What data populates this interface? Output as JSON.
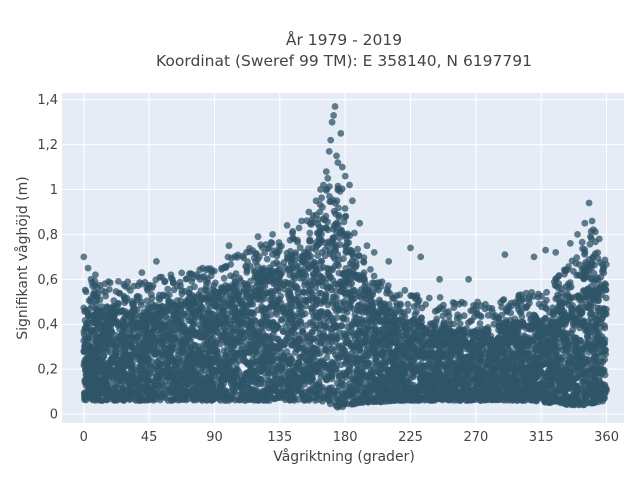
{
  "chart_data": {
    "type": "scatter",
    "title_line1": "År 1979 - 2019",
    "title_line2": "Koordinat (Sweref 99 TM): E 358140, N 6197791",
    "xlabel": "Vågriktning (grader)",
    "ylabel": "Signifikant våghöjd (m)",
    "xlim": [
      -15,
      372
    ],
    "ylim": [
      -0.04,
      1.43
    ],
    "xticks": [
      0,
      45,
      90,
      135,
      180,
      225,
      270,
      315,
      360
    ],
    "xtick_labels": [
      "0",
      "45",
      "90",
      "135",
      "180",
      "225",
      "270",
      "315",
      "360"
    ],
    "yticks": [
      0,
      0.2,
      0.4,
      0.6,
      0.8,
      1.0,
      1.2,
      1.4
    ],
    "ytick_labels": [
      "0",
      "0,2",
      "0,4",
      "0,6",
      "0,8",
      "1",
      "1,2",
      "1,4"
    ],
    "grid": true,
    "marker_color": "#2f5468",
    "background_color": "#e5ecf6",
    "envelope": {
      "x": [
        0,
        15,
        30,
        45,
        60,
        75,
        90,
        105,
        120,
        135,
        150,
        160,
        170,
        175,
        180,
        190,
        200,
        215,
        230,
        245,
        260,
        275,
        290,
        305,
        320,
        335,
        345,
        352,
        360
      ],
      "ymin": [
        0.06,
        0.06,
        0.06,
        0.06,
        0.06,
        0.06,
        0.06,
        0.06,
        0.06,
        0.06,
        0.06,
        0.05,
        0.04,
        0.03,
        0.03,
        0.05,
        0.05,
        0.06,
        0.06,
        0.06,
        0.06,
        0.06,
        0.06,
        0.06,
        0.05,
        0.04,
        0.04,
        0.05,
        0.06
      ],
      "ymax": [
        0.47,
        0.48,
        0.47,
        0.48,
        0.5,
        0.52,
        0.55,
        0.6,
        0.63,
        0.67,
        0.72,
        0.8,
        0.92,
        0.95,
        0.85,
        0.6,
        0.52,
        0.45,
        0.42,
        0.4,
        0.38,
        0.38,
        0.4,
        0.42,
        0.45,
        0.55,
        0.68,
        0.72,
        0.55
      ]
    },
    "outliers": [
      {
        "x": 0,
        "y": 0.7
      },
      {
        "x": 3,
        "y": 0.65
      },
      {
        "x": 5,
        "y": 0.6
      },
      {
        "x": 8,
        "y": 0.62
      },
      {
        "x": 40,
        "y": 0.63
      },
      {
        "x": 50,
        "y": 0.68
      },
      {
        "x": 60,
        "y": 0.62
      },
      {
        "x": 80,
        "y": 0.6
      },
      {
        "x": 95,
        "y": 0.65
      },
      {
        "x": 100,
        "y": 0.75
      },
      {
        "x": 112,
        "y": 0.72
      },
      {
        "x": 120,
        "y": 0.79
      },
      {
        "x": 130,
        "y": 0.8
      },
      {
        "x": 140,
        "y": 0.84
      },
      {
        "x": 150,
        "y": 0.86
      },
      {
        "x": 155,
        "y": 0.9
      },
      {
        "x": 160,
        "y": 0.95
      },
      {
        "x": 163,
        "y": 1.0
      },
      {
        "x": 165,
        "y": 1.02
      },
      {
        "x": 167,
        "y": 1.08
      },
      {
        "x": 168,
        "y": 1.05
      },
      {
        "x": 169,
        "y": 1.17
      },
      {
        "x": 170,
        "y": 1.22
      },
      {
        "x": 171,
        "y": 1.3
      },
      {
        "x": 172,
        "y": 1.33
      },
      {
        "x": 173,
        "y": 1.37
      },
      {
        "x": 174,
        "y": 1.15
      },
      {
        "x": 175,
        "y": 1.12
      },
      {
        "x": 177,
        "y": 1.25
      },
      {
        "x": 178,
        "y": 1.1
      },
      {
        "x": 180,
        "y": 1.06
      },
      {
        "x": 183,
        "y": 1.02
      },
      {
        "x": 185,
        "y": 0.95
      },
      {
        "x": 190,
        "y": 0.85
      },
      {
        "x": 195,
        "y": 0.75
      },
      {
        "x": 200,
        "y": 0.72
      },
      {
        "x": 210,
        "y": 0.68
      },
      {
        "x": 225,
        "y": 0.74
      },
      {
        "x": 232,
        "y": 0.7
      },
      {
        "x": 245,
        "y": 0.6
      },
      {
        "x": 265,
        "y": 0.6
      },
      {
        "x": 290,
        "y": 0.71
      },
      {
        "x": 310,
        "y": 0.7
      },
      {
        "x": 318,
        "y": 0.73
      },
      {
        "x": 325,
        "y": 0.72
      },
      {
        "x": 335,
        "y": 0.76
      },
      {
        "x": 340,
        "y": 0.8
      },
      {
        "x": 345,
        "y": 0.85
      },
      {
        "x": 348,
        "y": 0.94
      },
      {
        "x": 350,
        "y": 0.86
      },
      {
        "x": 355,
        "y": 0.78
      },
      {
        "x": 358,
        "y": 0.65
      }
    ]
  }
}
